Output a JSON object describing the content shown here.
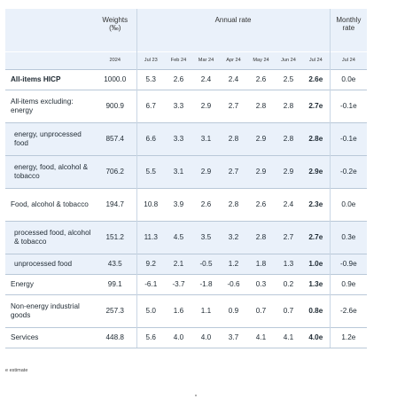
{
  "header": {
    "weights_label": "Weights (‰)",
    "annual_label": "Annual rate",
    "monthly_label": "Monthly rate",
    "sub": [
      "",
      "2024",
      "Jul 23",
      "Feb 24",
      "Mar 24",
      "Apr 24",
      "May 24",
      "Jun 24",
      "Jul 24",
      "Jul 24"
    ]
  },
  "rows": [
    {
      "label": "All-items HICP",
      "weight": "1000.0",
      "a": [
        "5.3",
        "2.6",
        "2.4",
        "2.4",
        "2.6",
        "2.5"
      ],
      "jul24": "2.6e",
      "monthly": "0.0e"
    },
    {
      "label": "All-items excluding: energy",
      "weight": "900.9",
      "a": [
        "6.7",
        "3.3",
        "2.9",
        "2.7",
        "2.8",
        "2.8"
      ],
      "jul24": "2.7e",
      "monthly": "-0.1e"
    },
    {
      "label": "energy, unprocessed food",
      "weight": "857.4",
      "a": [
        "6.6",
        "3.3",
        "3.1",
        "2.8",
        "2.9",
        "2.8"
      ],
      "jul24": "2.8e",
      "monthly": "-0.1e"
    },
    {
      "label": "energy, food, alcohol & tobacco",
      "weight": "706.2",
      "a": [
        "5.5",
        "3.1",
        "2.9",
        "2.7",
        "2.9",
        "2.9"
      ],
      "jul24": "2.9e",
      "monthly": "-0.2e"
    },
    {
      "label": "Food, alcohol & tobacco",
      "weight": "194.7",
      "a": [
        "10.8",
        "3.9",
        "2.6",
        "2.8",
        "2.6",
        "2.4"
      ],
      "jul24": "2.3e",
      "monthly": "0.0e"
    },
    {
      "label": "processed food, alcohol & tobacco",
      "weight": "151.2",
      "a": [
        "11.3",
        "4.5",
        "3.5",
        "3.2",
        "2.8",
        "2.7"
      ],
      "jul24": "2.7e",
      "monthly": "0.3e"
    },
    {
      "label": "unprocessed food",
      "weight": "43.5",
      "a": [
        "9.2",
        "2.1",
        "-0.5",
        "1.2",
        "1.8",
        "1.3"
      ],
      "jul24": "1.0e",
      "monthly": "-0.9e"
    },
    {
      "label": "Energy",
      "weight": "99.1",
      "a": [
        "-6.1",
        "-3.7",
        "-1.8",
        "-0.6",
        "0.3",
        "0.2"
      ],
      "jul24": "1.3e",
      "monthly": "0.9e"
    },
    {
      "label": "Non-energy industrial goods",
      "weight": "257.3",
      "a": [
        "5.0",
        "1.6",
        "1.1",
        "0.9",
        "0.7",
        "0.7"
      ],
      "jul24": "0.8e",
      "monthly": "-2.6e"
    },
    {
      "label": "Services",
      "weight": "448.8",
      "a": [
        "5.6",
        "4.0",
        "4.0",
        "3.7",
        "4.1",
        "4.1"
      ],
      "jul24": "4.0e",
      "monthly": "1.2e"
    }
  ],
  "footnote": "e estimate"
}
